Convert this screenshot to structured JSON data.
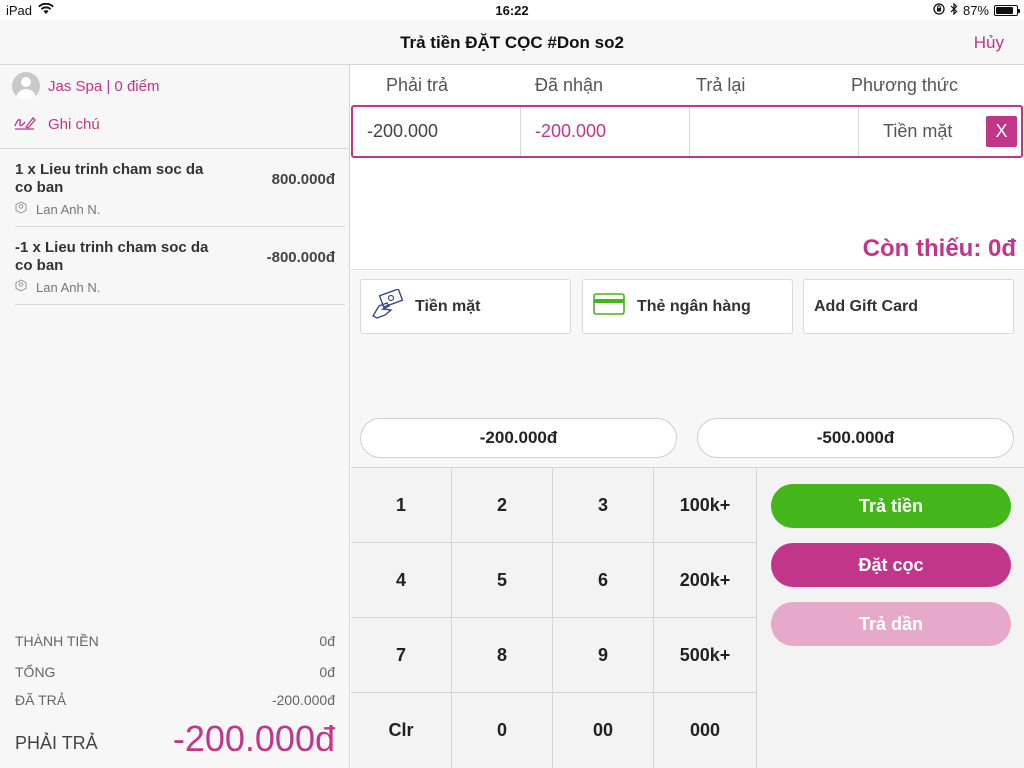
{
  "status_bar": {
    "device": "iPad",
    "time": "16:22",
    "battery": "87%",
    "battery_level": 0.87
  },
  "nav": {
    "title": "Trả tiền ĐẶT CỌC #Don so2",
    "cancel_label": "Hủy"
  },
  "customer": {
    "label": "Jas Spa | 0 điểm"
  },
  "note": {
    "label": "Ghi chú"
  },
  "items": [
    {
      "name": "1 x Lieu trinh cham soc da co ban",
      "price": "800.000đ",
      "staff": "Lan Anh N."
    },
    {
      "name": "-1 x Lieu trinh cham soc da co ban",
      "price": "-800.000đ",
      "staff": "Lan Anh N."
    }
  ],
  "totals": {
    "subtotal_label": "THÀNH TIỀN",
    "subtotal_value": "0đ",
    "total_label": "TỔNG",
    "total_value": "0đ",
    "paid_label": "ĐÃ TRẢ",
    "paid_value": "-200.000đ",
    "due_label": "PHẢI TRẢ",
    "due_value": "-200.000đ"
  },
  "payment_table": {
    "columns": [
      "Phải trả",
      "Đã nhận",
      "Trả lại",
      "Phương thức"
    ],
    "row": {
      "due": "-200.000",
      "received": "-200.000",
      "change": "",
      "method": "Tiền mặt",
      "remove_label": "X"
    }
  },
  "missing": "Còn thiếu: 0đ",
  "methods": [
    {
      "label": "Tiền mặt",
      "icon": "cash-icon"
    },
    {
      "label": "Thẻ ngân hàng",
      "icon": "bank-card-icon"
    },
    {
      "label": "Add Gift Card",
      "icon": ""
    }
  ],
  "quick_amounts": [
    "-200.000đ",
    "-500.000đ"
  ],
  "keypad": [
    "1",
    "2",
    "3",
    "100k+",
    "4",
    "5",
    "6",
    "200k+",
    "7",
    "8",
    "9",
    "500k+",
    "Clr",
    "0",
    "00",
    "000"
  ],
  "actions": {
    "pay_label": "Trả tiền",
    "pay_color": "#44b61a",
    "deposit_label": "Đặt cọc",
    "deposit_color": "#c2368a",
    "installment_label": "Trả dần",
    "installment_color": "#e6a9c9"
  },
  "colors": {
    "accent": "#c2368a",
    "success": "#44b61a"
  }
}
